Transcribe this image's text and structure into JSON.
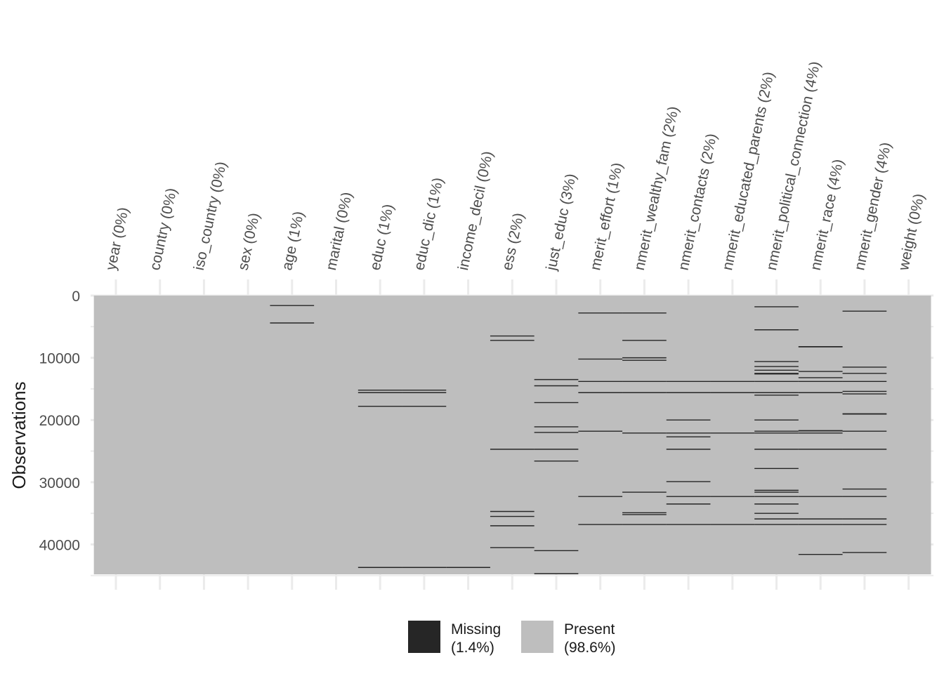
{
  "chart_data": {
    "type": "heatmap",
    "title": "",
    "xlabel": "",
    "ylabel": "Observations",
    "n_obs": 44800,
    "ylim": [
      0,
      44800
    ],
    "y_ticks": [
      0,
      10000,
      20000,
      30000,
      40000
    ],
    "grid": true,
    "legend_position": "bottom",
    "colors": {
      "missing": "#262626",
      "present": "#bebebe",
      "grid": "#ebebeb"
    },
    "legend": [
      {
        "key": "missing",
        "label": "Missing",
        "pct": "(1.4%)",
        "color": "#262626"
      },
      {
        "key": "present",
        "label": "Present",
        "pct": "(98.6%)",
        "color": "#bebebe"
      }
    ],
    "columns": [
      {
        "label": "year (0%)",
        "missing_rows": []
      },
      {
        "label": "country (0%)",
        "missing_rows": []
      },
      {
        "label": "iso_country (0%)",
        "missing_rows": []
      },
      {
        "label": "sex (0%)",
        "missing_rows": []
      },
      {
        "label": "age (1%)",
        "missing_rows": [
          1600,
          4400
        ]
      },
      {
        "label": "marital (0%)",
        "missing_rows": []
      },
      {
        "label": "educ (1%)",
        "missing_rows": [
          15200,
          15600,
          17800,
          43700
        ]
      },
      {
        "label": "educ_dic (1%)",
        "missing_rows": [
          15200,
          15600,
          17800,
          43700
        ]
      },
      {
        "label": "income_decil (0%)",
        "missing_rows": [
          43700
        ]
      },
      {
        "label": "ess (2%)",
        "missing_rows": [
          6500,
          7200,
          24700,
          34700,
          35500,
          37000,
          40500
        ]
      },
      {
        "label": "just_educ (3%)",
        "missing_rows": [
          13500,
          14500,
          17200,
          21100,
          22000,
          24700,
          26600,
          41000,
          44700
        ]
      },
      {
        "label": "merit_effort (1%)",
        "missing_rows": [
          2800,
          10200,
          13800,
          15600,
          21800,
          32300,
          36800
        ]
      },
      {
        "label": "nmerit_wealthy_fam (2%)",
        "missing_rows": [
          2800,
          7200,
          10000,
          10400,
          13800,
          15600,
          22100,
          31600,
          34900,
          35200,
          36800
        ]
      },
      {
        "label": "nmerit_contacts (2%)",
        "missing_rows": [
          13800,
          15600,
          20000,
          22100,
          22700,
          24700,
          29900,
          32300,
          33500,
          36800
        ]
      },
      {
        "label": "nmerit_educated_parents (2%)",
        "missing_rows": [
          13800,
          15600,
          22100,
          32300,
          36800
        ]
      },
      {
        "label": "nmerit_political_connection (4%)",
        "missing_rows": [
          1800,
          5500,
          10600,
          11400,
          12000,
          12500,
          12600,
          13800,
          15600,
          16000,
          20000,
          21800,
          22100,
          24700,
          27800,
          31300,
          31600,
          32300,
          33500,
          35000,
          35900,
          36800
        ]
      },
      {
        "label": "nmerit_race (4%)",
        "missing_rows": [
          8200,
          8250,
          12200,
          13200,
          13800,
          15600,
          21700,
          21750,
          22100,
          24700,
          32300,
          35900,
          36800,
          41600
        ]
      },
      {
        "label": "nmerit_gender (4%)",
        "missing_rows": [
          2500,
          11500,
          12500,
          13800,
          15400,
          15800,
          19000,
          19050,
          21800,
          24700,
          31100,
          32300,
          35900,
          36800,
          41300
        ]
      },
      {
        "label": "weight (0%)",
        "missing_rows": []
      }
    ]
  }
}
